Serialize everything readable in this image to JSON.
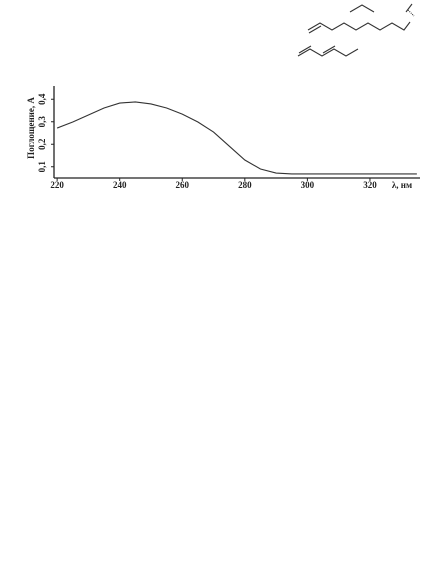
{
  "chart_data": {
    "type": "line",
    "x_label": "λ, нм",
    "y_label": "Поглощение, A",
    "x": [
      220,
      225,
      230,
      235,
      240,
      245,
      250,
      255,
      260,
      265,
      270,
      275,
      280,
      285,
      290,
      295,
      300,
      310,
      320,
      330,
      335
    ],
    "values": [
      0.272,
      0.299,
      0.33,
      0.361,
      0.383,
      0.388,
      0.379,
      0.361,
      0.334,
      0.299,
      0.254,
      0.192,
      0.13,
      0.09,
      0.072,
      0.068,
      0.068,
      0.068,
      0.068,
      0.068,
      0.068
    ],
    "color": "#333333",
    "xlim": [
      219,
      336
    ],
    "xticks": [
      220,
      240,
      260,
      280,
      300,
      320
    ],
    "ylim": [
      0.05,
      0.45
    ],
    "yticks": [
      {
        "value": 0.1,
        "label": "0,1"
      },
      {
        "value": 0.2,
        "label": "0,2"
      },
      {
        "value": 0.3,
        "label": "0,3"
      },
      {
        "value": 0.4,
        "label": "0,4"
      }
    ]
  }
}
